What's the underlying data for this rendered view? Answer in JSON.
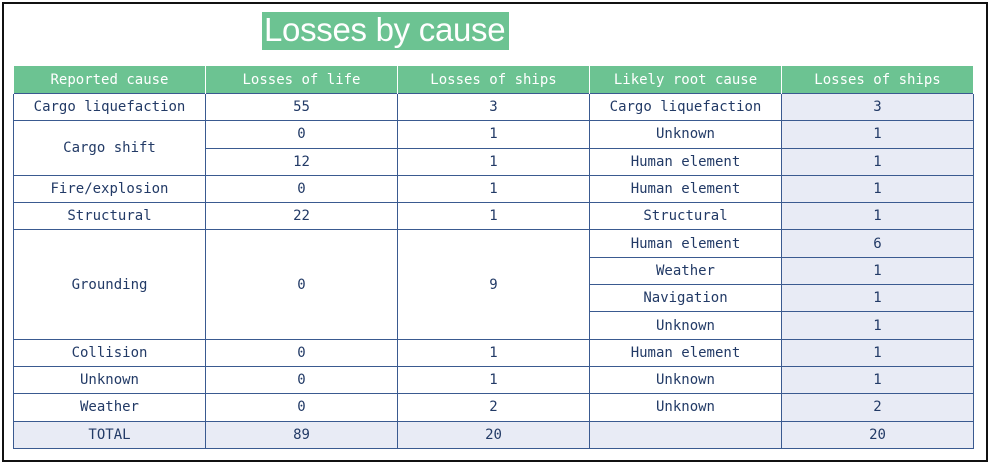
{
  "title": "Losses by cause",
  "headers": [
    "Reported cause",
    "Losses of life",
    "Losses of ships",
    "Likely root cause",
    "Losses of ships"
  ],
  "groups": [
    {
      "cause": "Cargo liquefaction",
      "life": [
        "55"
      ],
      "ships": [
        "3"
      ],
      "roots": [
        {
          "root": "Cargo liquefaction",
          "ships": "3"
        }
      ]
    },
    {
      "cause": "Cargo shift",
      "life": [
        "0",
        "12"
      ],
      "ships": [
        "1",
        "1"
      ],
      "roots": [
        {
          "root": "Unknown",
          "ships": "1"
        },
        {
          "root": "Human element",
          "ships": "1"
        }
      ]
    },
    {
      "cause": "Fire/explosion",
      "life": [
        "0"
      ],
      "ships": [
        "1"
      ],
      "roots": [
        {
          "root": "Human element",
          "ships": "1"
        }
      ]
    },
    {
      "cause": "Structural",
      "life": [
        "22"
      ],
      "ships": [
        "1"
      ],
      "roots": [
        {
          "root": "Structural",
          "ships": "1"
        }
      ]
    },
    {
      "cause": "Grounding",
      "life": [
        "0"
      ],
      "ships": [
        "9"
      ],
      "roots": [
        {
          "root": "Human element",
          "ships": "6"
        },
        {
          "root": "Weather",
          "ships": "1"
        },
        {
          "root": "Navigation",
          "ships": "1"
        },
        {
          "root": "Unknown",
          "ships": "1"
        }
      ]
    },
    {
      "cause": "Collision",
      "life": [
        "0"
      ],
      "ships": [
        "1"
      ],
      "roots": [
        {
          "root": "Human element",
          "ships": "1"
        }
      ]
    },
    {
      "cause": "Unknown",
      "life": [
        "0"
      ],
      "ships": [
        "1"
      ],
      "roots": [
        {
          "root": "Unknown",
          "ships": "1"
        }
      ]
    },
    {
      "cause": "Weather",
      "life": [
        "0"
      ],
      "ships": [
        "2"
      ],
      "roots": [
        {
          "root": "Unknown",
          "ships": "2"
        }
      ]
    }
  ],
  "total": {
    "label": "TOTAL",
    "life": "89",
    "ships": "20",
    "root": "",
    "root_ships": "20"
  }
}
